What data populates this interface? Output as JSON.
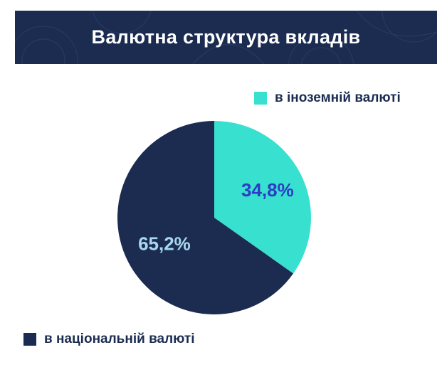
{
  "chart_data": {
    "type": "pie",
    "title": "Валютна структура вкладів",
    "series": [
      {
        "name": "в іноземній валюті",
        "value": 34.8,
        "label": "34,8%",
        "color": "#38e0d0",
        "label_color": "#2c3cc4"
      },
      {
        "name": "в національній валюті",
        "value": 65.2,
        "label": "65,2%",
        "color": "#1b2c50",
        "label_color": "#a9d8ee"
      }
    ],
    "start": "12 o'clock",
    "direction": "clockwise",
    "legend": {
      "foreign": "top-right",
      "national": "bottom-left"
    }
  },
  "colors": {
    "header_background": "#1b2c50",
    "title_text": "#ffffff",
    "legend_text": "#1b2c50"
  }
}
